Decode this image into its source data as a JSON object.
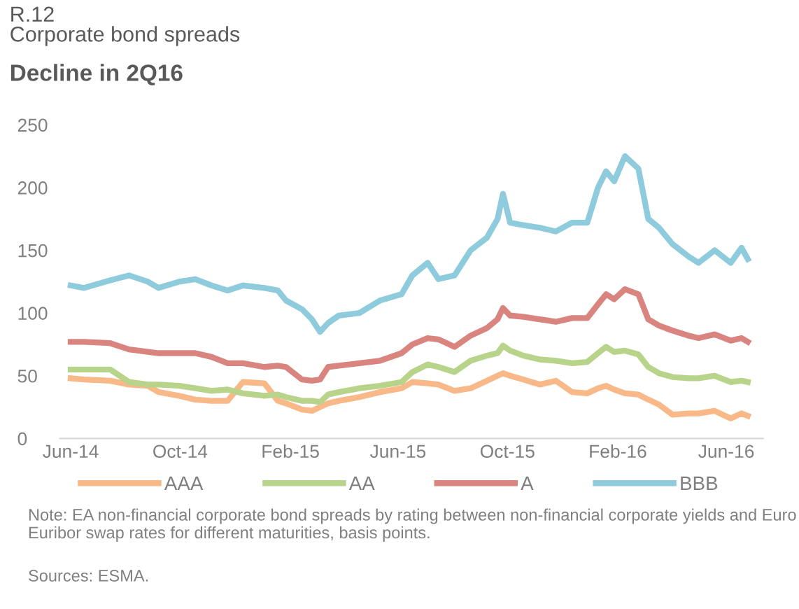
{
  "chart_data": {
    "type": "line",
    "title": "R.12\nCorporate bond spreads",
    "subtitle": "Decline in 2Q16",
    "x": [
      "2014-06-01",
      "2014-06-16",
      "2014-07-15",
      "2014-08-05",
      "2014-08-26",
      "2014-09-07",
      "2014-09-30",
      "2014-10-18",
      "2014-11-05",
      "2014-11-23",
      "2014-12-10",
      "2015-01-03",
      "2015-01-18",
      "2015-01-27",
      "2015-02-14",
      "2015-02-25",
      "2015-03-06",
      "2015-03-15",
      "2015-03-27",
      "2015-04-19",
      "2015-05-12",
      "2015-06-05",
      "2015-06-17",
      "2015-07-04",
      "2015-07-16",
      "2015-08-03",
      "2015-08-21",
      "2015-09-08",
      "2015-09-20",
      "2015-09-26",
      "2015-10-04",
      "2015-10-19",
      "2015-11-06",
      "2015-11-24",
      "2015-12-12",
      "2015-12-29",
      "2016-01-10",
      "2016-01-19",
      "2016-01-28",
      "2016-02-09",
      "2016-02-24",
      "2016-03-06",
      "2016-03-18",
      "2016-04-02",
      "2016-04-20",
      "2016-05-01",
      "2016-05-19",
      "2016-06-06",
      "2016-06-18",
      "2016-06-25"
    ],
    "series": [
      {
        "name": "AAA",
        "color": "#f8b888",
        "values": [
          48,
          47,
          46,
          43,
          42,
          37,
          34,
          31,
          30,
          30,
          45,
          44,
          30,
          28,
          23,
          22,
          25,
          28,
          30,
          33,
          37,
          40,
          45,
          44,
          43,
          38,
          40,
          46,
          50,
          52,
          50,
          47,
          43,
          46,
          37,
          36,
          40,
          42,
          39,
          36,
          35,
          31,
          27,
          19,
          20,
          20,
          22,
          16,
          20,
          18
        ]
      },
      {
        "name": "AA",
        "color": "#b8d48a",
        "values": [
          55,
          55,
          55,
          45,
          43,
          43,
          42,
          40,
          38,
          39,
          36,
          34,
          35,
          33,
          30,
          30,
          29,
          35,
          37,
          40,
          42,
          45,
          53,
          59,
          57,
          53,
          62,
          66,
          68,
          74,
          70,
          66,
          63,
          62,
          60,
          61,
          68,
          73,
          69,
          70,
          67,
          57,
          52,
          49,
          48,
          48,
          50,
          45,
          46,
          45
        ]
      },
      {
        "name": "A",
        "color": "#d9847f",
        "values": [
          77,
          77,
          76,
          71,
          69,
          68,
          68,
          68,
          65,
          60,
          60,
          57,
          58,
          57,
          47,
          46,
          47,
          57,
          58,
          60,
          62,
          68,
          75,
          80,
          79,
          73,
          82,
          88,
          95,
          104,
          98,
          97,
          95,
          93,
          96,
          96,
          107,
          115,
          111,
          119,
          115,
          95,
          90,
          86,
          82,
          80,
          83,
          78,
          80,
          77
        ]
      },
      {
        "name": "BBB",
        "color": "#8ecbdc",
        "values": [
          122,
          120,
          126,
          130,
          125,
          120,
          125,
          127,
          122,
          118,
          122,
          120,
          118,
          110,
          103,
          95,
          85,
          92,
          98,
          100,
          110,
          115,
          130,
          140,
          127,
          130,
          150,
          160,
          175,
          195,
          172,
          170,
          168,
          165,
          172,
          172,
          200,
          213,
          205,
          225,
          215,
          175,
          168,
          155,
          145,
          140,
          150,
          140,
          152,
          143
        ]
      }
    ],
    "xlim": [
      "2014-05-20",
      "2016-07-12"
    ],
    "xticks": [
      {
        "value": "2014-06-01",
        "label": "Jun-14"
      },
      {
        "value": "2014-10-01",
        "label": "Oct-14"
      },
      {
        "value": "2015-02-01",
        "label": "Feb-15"
      },
      {
        "value": "2015-06-01",
        "label": "Jun-15"
      },
      {
        "value": "2015-10-01",
        "label": "Oct-15"
      },
      {
        "value": "2016-02-01",
        "label": "Feb-16"
      },
      {
        "value": "2016-06-01",
        "label": "Jun-16"
      }
    ],
    "ylim": [
      0,
      250
    ],
    "yticks": [
      0,
      50,
      100,
      150,
      200,
      250
    ],
    "grid": false,
    "legend": "bottom",
    "marker": "none",
    "line_style": "solid",
    "annotations": [
      "Note: EA non-financial corporate bond spreads by rating between non-financial corporate yields and Euro Euribor swap rates for different maturities, basis points.",
      "Sources: ESMA."
    ]
  }
}
